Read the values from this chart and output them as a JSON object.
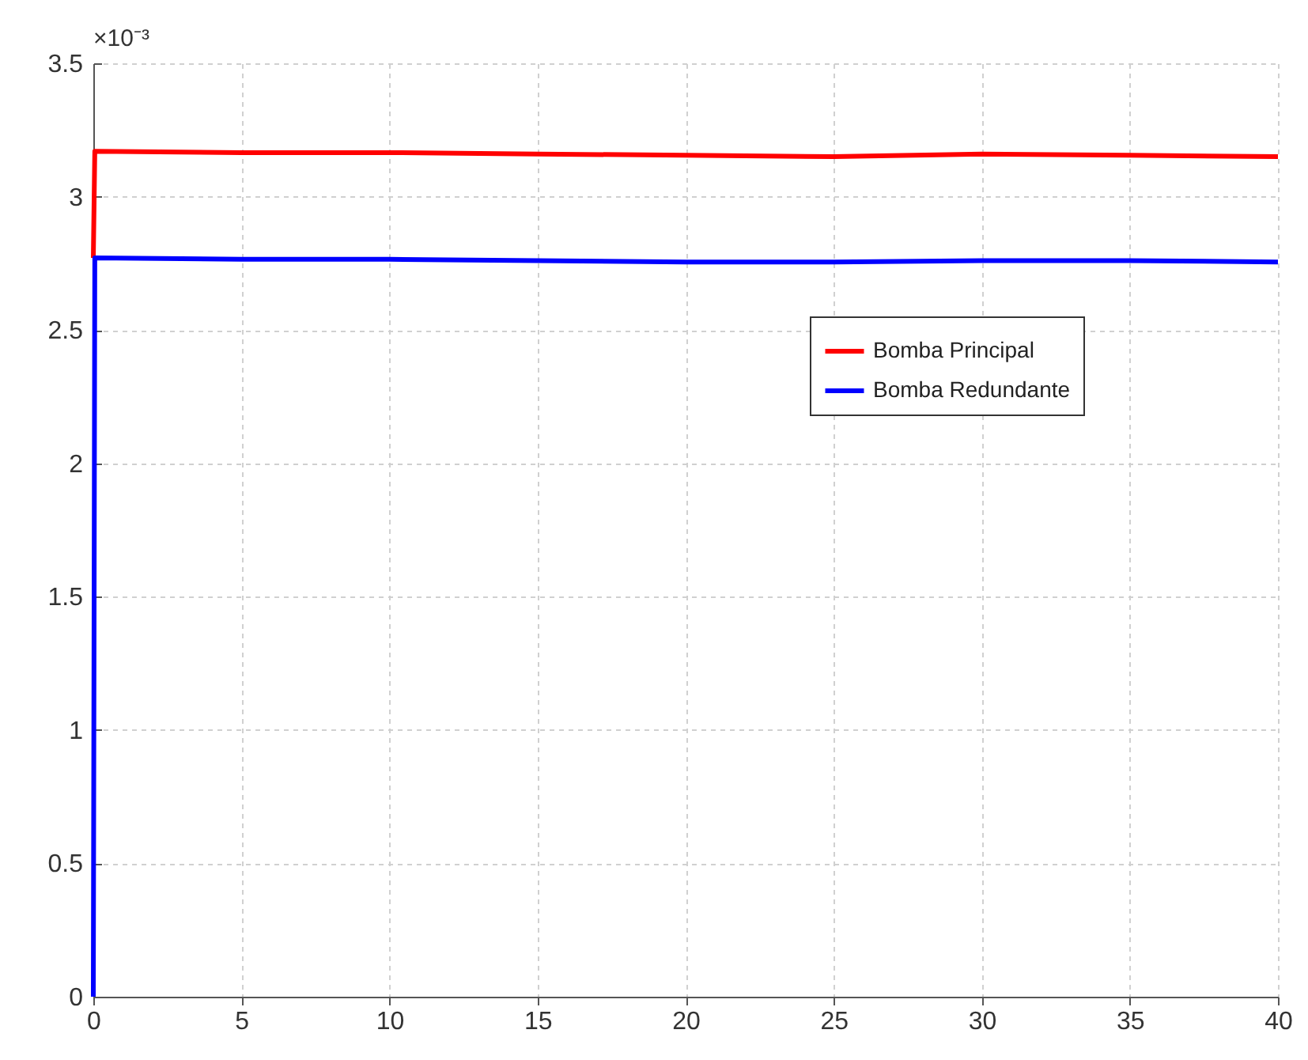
{
  "chart_data": {
    "type": "line",
    "annotations": [
      "×10⁻³"
    ],
    "xlim": [
      0,
      40
    ],
    "xticks": [
      0,
      5,
      10,
      15,
      20,
      25,
      30,
      35,
      40
    ],
    "ylim": [
      0,
      3.5
    ],
    "yticks": [
      0,
      0.5,
      1,
      1.5,
      2,
      2.5,
      3,
      3.5
    ],
    "grid": true,
    "legend": "top right",
    "line_style": "solid",
    "marker": "none",
    "series": [
      {
        "name": "Bomba Principal",
        "color": "#ff0000",
        "x": [
          0,
          0.05,
          5,
          10,
          15,
          20,
          25,
          30,
          35,
          40
        ],
        "values": [
          2.77,
          3.17,
          3.165,
          3.165,
          3.16,
          3.155,
          3.15,
          3.16,
          3.155,
          3.15
        ]
      },
      {
        "name": "Bomba Redundante",
        "color": "#0000ff",
        "x": [
          0,
          0.05,
          5,
          10,
          15,
          20,
          25,
          30,
          35,
          40
        ],
        "values": [
          0,
          2.77,
          2.765,
          2.765,
          2.76,
          2.755,
          2.755,
          2.76,
          2.76,
          2.755
        ]
      }
    ]
  }
}
